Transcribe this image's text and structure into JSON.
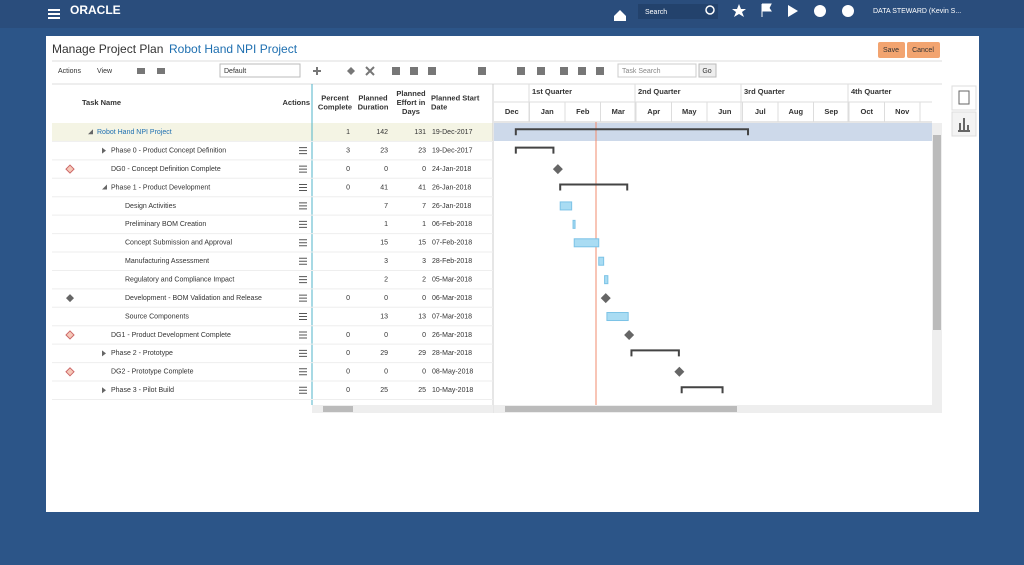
{
  "header": {
    "logo": "ORACLE",
    "search": "Search",
    "user": "DATA STEWARD (Kevin S..."
  },
  "page": {
    "title": "Manage Project Plan",
    "project": "Robot Hand NPI Project",
    "save": "Save",
    "cancel": "Cancel"
  },
  "toolbar": {
    "actions": "Actions",
    "view": "View",
    "layout": "Default",
    "search": "Task Search",
    "go": "Go"
  },
  "table": {
    "columns": [
      "Task Name",
      "Actions",
      "Percent Complete",
      "Planned Duration",
      "Planned Effort in Days",
      "Planned Start Date"
    ],
    "rows": [
      [
        "Robot Hand NPI Project",
        1,
        142,
        131,
        "19-Dec-2017"
      ],
      [
        "Phase 0 - Product Concept Definition",
        3,
        23,
        23,
        "19-Dec-2017"
      ],
      [
        "DG0 - Concept Definition Complete",
        0,
        0,
        0,
        "24-Jan-2018"
      ],
      [
        "Phase 1 - Product Development",
        0,
        41,
        41,
        "26-Jan-2018"
      ],
      [
        "Design Activities",
        null,
        7,
        7,
        "26-Jan-2018"
      ],
      [
        "Preliminary BOM Creation",
        null,
        1,
        1,
        "06-Feb-2018"
      ],
      [
        "Concept Submission and Approval",
        null,
        15,
        15,
        "07-Feb-2018"
      ],
      [
        "Manufacturing Assessment",
        null,
        3,
        3,
        "28-Feb-2018"
      ],
      [
        "Regulatory and Compliance Impact",
        null,
        2,
        2,
        "05-Mar-2018"
      ],
      [
        "Development - BOM Validation and Release",
        0,
        0,
        0,
        "06-Mar-2018"
      ],
      [
        "Source Components",
        null,
        13,
        13,
        "07-Mar-2018"
      ],
      [
        "DG1 - Product Development Complete",
        0,
        0,
        0,
        "26-Mar-2018"
      ],
      [
        "Phase 2 - Prototype",
        0,
        29,
        29,
        "28-Mar-2018"
      ],
      [
        "DG2 - Prototype Complete",
        0,
        0,
        0,
        "08-May-2018"
      ],
      [
        "Phase 3 - Pilot Build",
        0,
        25,
        25,
        "10-May-2018"
      ]
    ]
  },
  "gantt": {
    "quarters": [
      "1st Quarter",
      "2nd Quarter",
      "3rd Quarter",
      "4th Quarter"
    ],
    "months": [
      "Dec",
      "Jan",
      "Feb",
      "Mar",
      "Apr",
      "May",
      "Jun",
      "Jul",
      "Aug",
      "Sep",
      "Oct",
      "Nov"
    ]
  }
}
